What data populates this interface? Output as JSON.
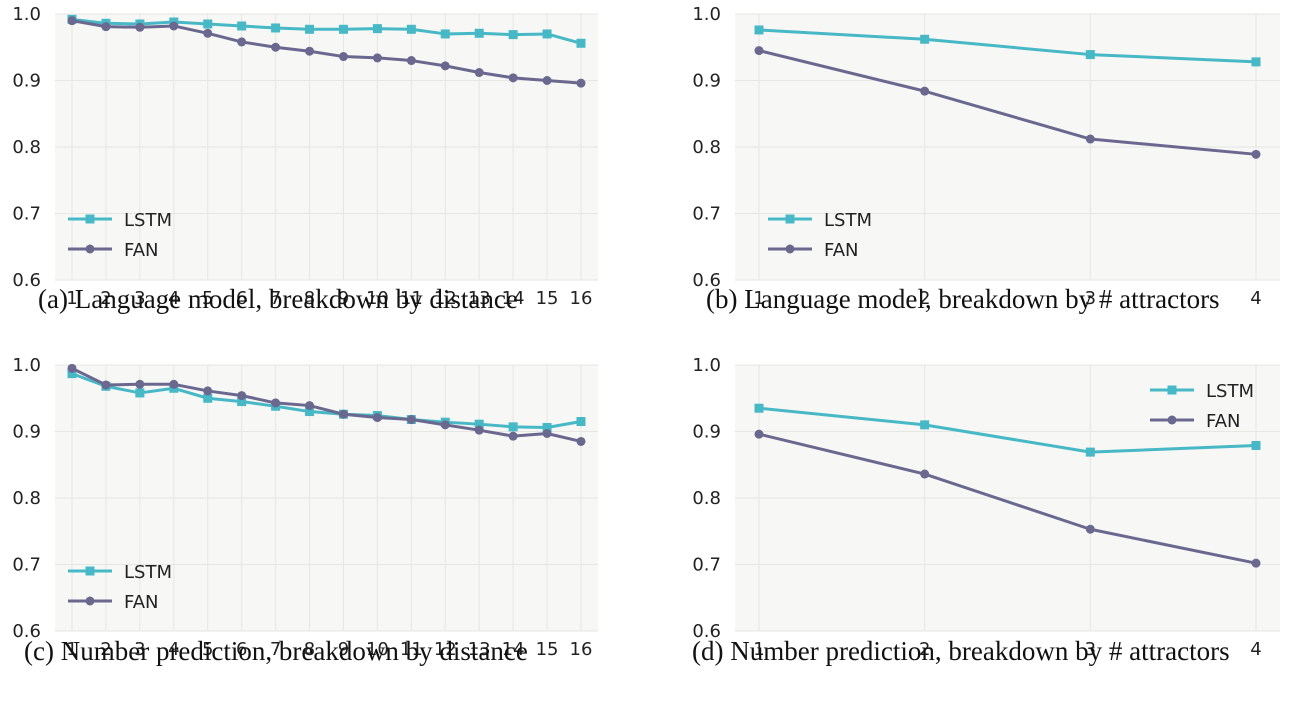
{
  "colors": {
    "lstm": "#47b8c6",
    "fan": "#6b6890",
    "plot_bg": "#f7f7f5",
    "grid": "#e6e6e3"
  },
  "chart_data": [
    {
      "id": "a",
      "type": "line",
      "caption": "(a) Language model, breakdown by distance",
      "x": [
        1,
        2,
        3,
        4,
        5,
        6,
        7,
        8,
        9,
        10,
        11,
        12,
        13,
        14,
        15,
        16
      ],
      "ylim": [
        0.6,
        1.0
      ],
      "yticks": [
        "0.6",
        "0.7",
        "0.8",
        "0.9",
        "1.0"
      ],
      "grid": true,
      "legend_position": "lower-left",
      "series": [
        {
          "name": "LSTM",
          "marker": "square",
          "values": [
            0.992,
            0.986,
            0.985,
            0.988,
            0.985,
            0.982,
            0.979,
            0.977,
            0.977,
            0.978,
            0.977,
            0.97,
            0.971,
            0.969,
            0.97,
            0.956
          ]
        },
        {
          "name": "FAN",
          "marker": "circle",
          "values": [
            0.99,
            0.981,
            0.98,
            0.982,
            0.971,
            0.958,
            0.95,
            0.944,
            0.936,
            0.934,
            0.93,
            0.922,
            0.912,
            0.904,
            0.9,
            0.896
          ]
        }
      ]
    },
    {
      "id": "b",
      "type": "line",
      "caption": "(b) Language model, breakdown by # attractors",
      "x": [
        1,
        2,
        3,
        4
      ],
      "ylim": [
        0.6,
        1.0
      ],
      "yticks": [
        "0.6",
        "0.7",
        "0.8",
        "0.9",
        "1.0"
      ],
      "grid": true,
      "legend_position": "lower-left",
      "series": [
        {
          "name": "LSTM",
          "marker": "square",
          "values": [
            0.976,
            0.962,
            0.939,
            0.928
          ]
        },
        {
          "name": "FAN",
          "marker": "circle",
          "values": [
            0.945,
            0.884,
            0.812,
            0.789
          ]
        }
      ]
    },
    {
      "id": "c",
      "type": "line",
      "caption": "(c) Number prediction, breakdown by distance",
      "x": [
        1,
        2,
        3,
        4,
        5,
        6,
        7,
        8,
        9,
        10,
        11,
        12,
        13,
        14,
        15,
        16
      ],
      "ylim": [
        0.6,
        1.0
      ],
      "yticks": [
        "0.6",
        "0.7",
        "0.8",
        "0.9",
        "1.0"
      ],
      "grid": true,
      "legend_position": "lower-left",
      "series": [
        {
          "name": "LSTM",
          "marker": "square",
          "values": [
            0.987,
            0.968,
            0.958,
            0.965,
            0.95,
            0.945,
            0.938,
            0.93,
            0.926,
            0.924,
            0.918,
            0.914,
            0.911,
            0.907,
            0.906,
            0.915
          ]
        },
        {
          "name": "FAN",
          "marker": "circle",
          "values": [
            0.995,
            0.97,
            0.971,
            0.971,
            0.961,
            0.954,
            0.943,
            0.939,
            0.926,
            0.921,
            0.918,
            0.91,
            0.902,
            0.893,
            0.897,
            0.885
          ]
        }
      ]
    },
    {
      "id": "d",
      "type": "line",
      "caption": "(d) Number prediction, breakdown by # attractors",
      "x": [
        1,
        2,
        3,
        4
      ],
      "ylim": [
        0.6,
        1.0
      ],
      "yticks": [
        "0.6",
        "0.7",
        "0.8",
        "0.9",
        "1.0"
      ],
      "grid": true,
      "legend_position": "top-right",
      "series": [
        {
          "name": "LSTM",
          "marker": "square",
          "values": [
            0.935,
            0.91,
            0.869,
            0.879
          ]
        },
        {
          "name": "FAN",
          "marker": "circle",
          "values": [
            0.896,
            0.836,
            0.753,
            0.702
          ]
        }
      ]
    }
  ]
}
